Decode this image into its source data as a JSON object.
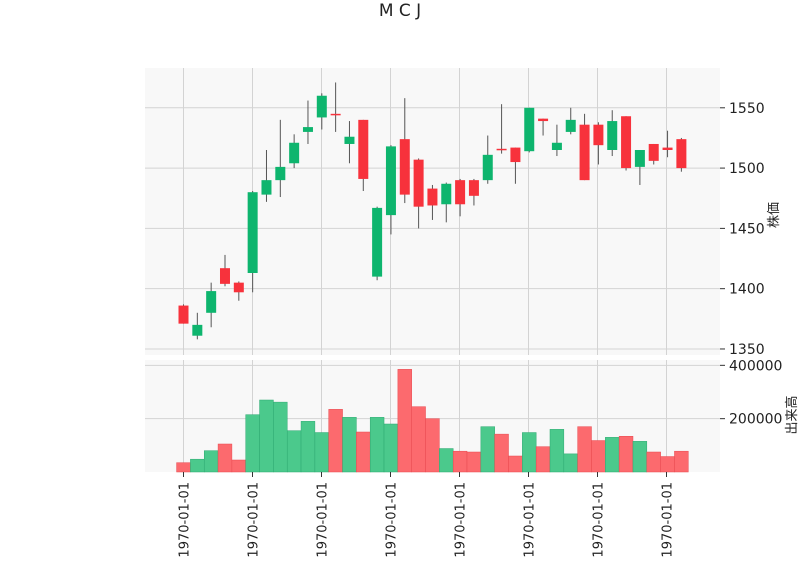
{
  "chart_data": {
    "type": "candlestick",
    "title": "M C J",
    "price_ylabel": "株価",
    "volume_ylabel": "出来高",
    "price_ylim": [
      1345,
      1583
    ],
    "volume_ylim": [
      0,
      420000
    ],
    "price_ticks": [
      1350,
      1400,
      1450,
      1500,
      1550
    ],
    "volume_ticks": [
      200000,
      400000
    ],
    "x_tick_labels": [
      "1970-01-01",
      "1970-01-01",
      "1970-01-01",
      "1970-01-01",
      "1970-01-01",
      "1970-01-01",
      "1970-01-01",
      "1970-01-01"
    ],
    "x_tick_index": [
      1,
      6,
      11,
      16,
      21,
      26,
      31,
      36
    ],
    "grid": true,
    "colors": {
      "up": "#0eb56e",
      "down": "#f7323c",
      "up_volume": "#4bc98c",
      "down_volume": "#fc6a6e",
      "wick": "#555555",
      "panel_bg": "#f8f8f8",
      "grid": "#d3d3d3"
    },
    "candles": [
      {
        "open": 1386,
        "high": 1387,
        "low": 1371,
        "close": 1371,
        "volume": 35000
      },
      {
        "open": 1361,
        "high": 1380,
        "low": 1358,
        "close": 1370,
        "volume": 48000
      },
      {
        "open": 1380,
        "high": 1405,
        "low": 1368,
        "close": 1398,
        "volume": 80000
      },
      {
        "open": 1417,
        "high": 1428,
        "low": 1402,
        "close": 1404,
        "volume": 105000
      },
      {
        "open": 1405,
        "high": 1406,
        "low": 1390,
        "close": 1397,
        "volume": 45000
      },
      {
        "open": 1413,
        "high": 1481,
        "low": 1397,
        "close": 1480,
        "volume": 215000
      },
      {
        "open": 1478,
        "high": 1515,
        "low": 1472,
        "close": 1490,
        "volume": 270000
      },
      {
        "open": 1490,
        "high": 1540,
        "low": 1476,
        "close": 1501,
        "volume": 262000
      },
      {
        "open": 1504,
        "high": 1528,
        "low": 1500,
        "close": 1521,
        "volume": 155000
      },
      {
        "open": 1530,
        "high": 1556,
        "low": 1520,
        "close": 1534,
        "volume": 190000
      },
      {
        "open": 1542,
        "high": 1562,
        "low": 1532,
        "close": 1560,
        "volume": 148000
      },
      {
        "open": 1545,
        "high": 1571,
        "low": 1530,
        "close": 1544,
        "volume": 235000
      },
      {
        "open": 1520,
        "high": 1539,
        "low": 1504,
        "close": 1526,
        "volume": 205000
      },
      {
        "open": 1540,
        "high": 1540,
        "low": 1481,
        "close": 1491,
        "volume": 150000
      },
      {
        "open": 1410,
        "high": 1468,
        "low": 1407,
        "close": 1467,
        "volume": 205000
      },
      {
        "open": 1461,
        "high": 1519,
        "low": 1445,
        "close": 1518,
        "volume": 180000
      },
      {
        "open": 1524,
        "high": 1558,
        "low": 1471,
        "close": 1478,
        "volume": 385000
      },
      {
        "open": 1507,
        "high": 1508,
        "low": 1450,
        "close": 1468,
        "volume": 245000
      },
      {
        "open": 1483,
        "high": 1486,
        "low": 1457,
        "close": 1469,
        "volume": 200000
      },
      {
        "open": 1470,
        "high": 1488,
        "low": 1455,
        "close": 1487,
        "volume": 88000
      },
      {
        "open": 1490,
        "high": 1491,
        "low": 1460,
        "close": 1470,
        "volume": 78000
      },
      {
        "open": 1490,
        "high": 1491,
        "low": 1469,
        "close": 1477,
        "volume": 75000
      },
      {
        "open": 1490,
        "high": 1527,
        "low": 1487,
        "close": 1511,
        "volume": 170000
      },
      {
        "open": 1516,
        "high": 1553,
        "low": 1512,
        "close": 1515,
        "volume": 142000
      },
      {
        "open": 1517,
        "high": 1517,
        "low": 1487,
        "close": 1505,
        "volume": 60000
      },
      {
        "open": 1514,
        "high": 1550,
        "low": 1513,
        "close": 1550,
        "volume": 148000
      },
      {
        "open": 1541,
        "high": 1541,
        "low": 1527,
        "close": 1539,
        "volume": 95000
      },
      {
        "open": 1515,
        "high": 1536,
        "low": 1510,
        "close": 1521,
        "volume": 160000
      },
      {
        "open": 1530,
        "high": 1550,
        "low": 1528,
        "close": 1540,
        "volume": 68000
      },
      {
        "open": 1536,
        "high": 1545,
        "low": 1490,
        "close": 1490,
        "volume": 170000
      },
      {
        "open": 1536,
        "high": 1538,
        "low": 1503,
        "close": 1519,
        "volume": 118000
      },
      {
        "open": 1515,
        "high": 1548,
        "low": 1510,
        "close": 1539,
        "volume": 130000
      },
      {
        "open": 1543,
        "high": 1543,
        "low": 1498,
        "close": 1500,
        "volume": 134000
      },
      {
        "open": 1501,
        "high": 1515,
        "low": 1486,
        "close": 1515,
        "volume": 115000
      },
      {
        "open": 1520,
        "high": 1520,
        "low": 1503,
        "close": 1506,
        "volume": 75000
      },
      {
        "open": 1517,
        "high": 1531,
        "low": 1509,
        "close": 1515,
        "volume": 58000
      },
      {
        "open": 1524,
        "high": 1525,
        "low": 1497,
        "close": 1500,
        "volume": 78000
      }
    ]
  }
}
